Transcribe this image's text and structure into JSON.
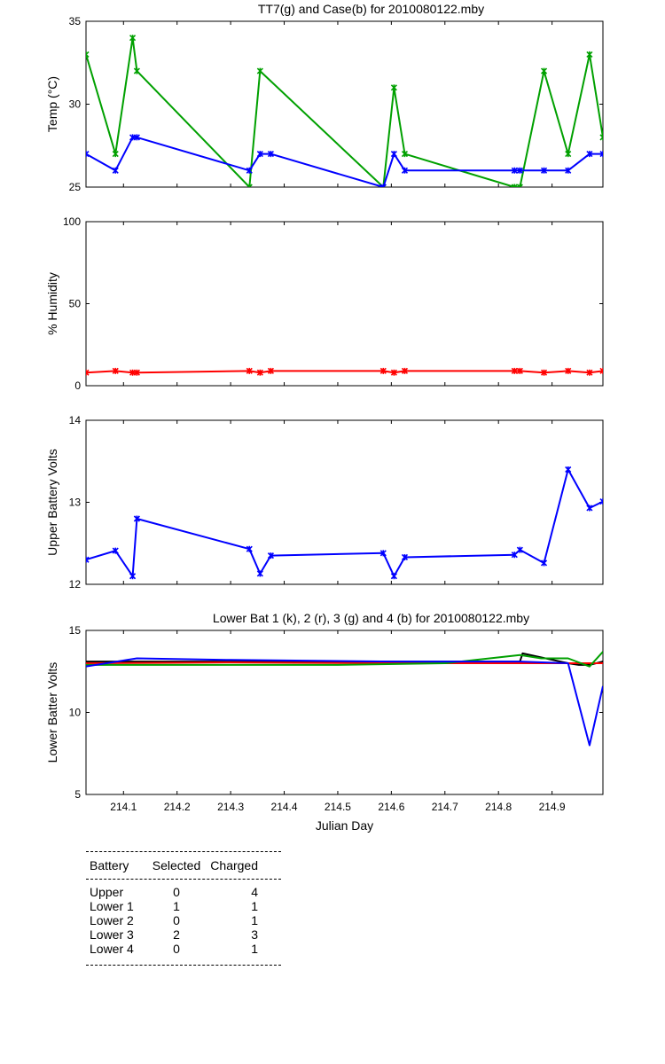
{
  "chart_data": [
    {
      "type": "line",
      "title": "TT7(g) and Case(b) for 2010080122.mby",
      "xlabel": "",
      "ylabel": "Temp  (°C)",
      "xlim": [
        214.03,
        214.995
      ],
      "ylim": [
        25,
        35
      ],
      "yticks": [
        25,
        30,
        35
      ],
      "grid": false,
      "series": [
        {
          "color": "#00a000",
          "points": [
            [
              214.03,
              33
            ],
            [
              214.085,
              27
            ],
            [
              214.117,
              34
            ],
            [
              214.125,
              32
            ],
            [
              214.335,
              25
            ],
            [
              214.355,
              32
            ],
            [
              214.585,
              25
            ],
            [
              214.605,
              31
            ],
            [
              214.625,
              27
            ],
            [
              214.83,
              25
            ],
            [
              214.84,
              25
            ],
            [
              214.885,
              32
            ],
            [
              214.93,
              27
            ],
            [
              214.97,
              33
            ],
            [
              214.995,
              28
            ]
          ]
        },
        {
          "color": "#0000ff",
          "points": [
            [
              214.03,
              27
            ],
            [
              214.085,
              26
            ],
            [
              214.117,
              28
            ],
            [
              214.125,
              28
            ],
            [
              214.335,
              26
            ],
            [
              214.355,
              27
            ],
            [
              214.375,
              27
            ],
            [
              214.585,
              25
            ],
            [
              214.605,
              27
            ],
            [
              214.625,
              26
            ],
            [
              214.83,
              26
            ],
            [
              214.84,
              26
            ],
            [
              214.885,
              26
            ],
            [
              214.93,
              26
            ],
            [
              214.97,
              27
            ],
            [
              214.995,
              27
            ]
          ]
        }
      ]
    },
    {
      "type": "line",
      "title": "",
      "xlabel": "",
      "ylabel": "% Humidity",
      "xlim": [
        214.03,
        214.995
      ],
      "ylim": [
        0,
        100
      ],
      "yticks": [
        0,
        50,
        100
      ],
      "grid": false,
      "series": [
        {
          "color": "#ff0000",
          "points": [
            [
              214.03,
              8
            ],
            [
              214.085,
              9
            ],
            [
              214.117,
              8
            ],
            [
              214.125,
              8
            ],
            [
              214.335,
              9
            ],
            [
              214.355,
              8
            ],
            [
              214.375,
              9
            ],
            [
              214.585,
              9
            ],
            [
              214.605,
              8
            ],
            [
              214.625,
              9
            ],
            [
              214.83,
              9
            ],
            [
              214.84,
              9
            ],
            [
              214.885,
              8
            ],
            [
              214.93,
              9
            ],
            [
              214.97,
              8
            ],
            [
              214.995,
              9
            ]
          ]
        }
      ]
    },
    {
      "type": "line",
      "title": "",
      "xlabel": "",
      "ylabel": "Upper Battery Volts",
      "xlim": [
        214.03,
        214.995
      ],
      "ylim": [
        12,
        14
      ],
      "yticks": [
        12,
        13,
        14
      ],
      "grid": false,
      "series": [
        {
          "color": "#0000ff",
          "points": [
            [
              214.03,
              12.3
            ],
            [
              214.085,
              12.41
            ],
            [
              214.117,
              12.1
            ],
            [
              214.125,
              12.8
            ],
            [
              214.335,
              12.43
            ],
            [
              214.355,
              12.13
            ],
            [
              214.375,
              12.35
            ],
            [
              214.585,
              12.38
            ],
            [
              214.605,
              12.1
            ],
            [
              214.625,
              12.33
            ],
            [
              214.83,
              12.36
            ],
            [
              214.84,
              12.42
            ],
            [
              214.885,
              12.26
            ],
            [
              214.93,
              13.4
            ],
            [
              214.97,
              12.93
            ],
            [
              214.995,
              13.01
            ]
          ]
        }
      ]
    },
    {
      "type": "line",
      "title": "Lower Bat 1 (k), 2 (r), 3 (g) and 4 (b) for 2010080122.mby",
      "xlabel": "Julian Day",
      "ylabel": "Lower Batter Volts",
      "xlim": [
        214.03,
        214.995
      ],
      "ylim": [
        5,
        15
      ],
      "yticks": [
        5,
        10,
        15
      ],
      "xticks": [
        214.1,
        214.2,
        214.3,
        214.4,
        214.5,
        214.6,
        214.7,
        214.8,
        214.9
      ],
      "grid": false,
      "series": [
        {
          "color": "#000000",
          "points": [
            [
              214.03,
              13.1
            ],
            [
              214.3,
              13.1
            ],
            [
              214.6,
              13.1
            ],
            [
              214.84,
              13.1
            ],
            [
              214.845,
              13.6
            ],
            [
              214.93,
              13.0
            ],
            [
              214.95,
              12.9
            ],
            [
              214.97,
              12.9
            ],
            [
              214.995,
              13.1
            ]
          ]
        },
        {
          "color": "#ff0000",
          "points": [
            [
              214.03,
              13.0
            ],
            [
              214.3,
              13.05
            ],
            [
              214.6,
              13.0
            ],
            [
              214.84,
              13.0
            ],
            [
              214.93,
              13.0
            ],
            [
              214.97,
              13.0
            ],
            [
              214.995,
              13.0
            ]
          ]
        },
        {
          "color": "#00a000",
          "points": [
            [
              214.03,
              12.9
            ],
            [
              214.2,
              12.9
            ],
            [
              214.5,
              12.9
            ],
            [
              214.7,
              13.0
            ],
            [
              214.84,
              13.5
            ],
            [
              214.88,
              13.3
            ],
            [
              214.93,
              13.3
            ],
            [
              214.97,
              12.8
            ],
            [
              214.995,
              13.7
            ]
          ]
        },
        {
          "color": "#0000ff",
          "points": [
            [
              214.03,
              12.8
            ],
            [
              214.125,
              13.3
            ],
            [
              214.3,
              13.2
            ],
            [
              214.6,
              13.1
            ],
            [
              214.84,
              13.1
            ],
            [
              214.93,
              13.0
            ],
            [
              214.97,
              8.0
            ],
            [
              214.995,
              11.6
            ]
          ]
        }
      ]
    }
  ],
  "battery_table": {
    "headers": [
      "Battery",
      "Selected",
      "Charged"
    ],
    "rows": [
      [
        "Upper",
        "0",
        "4"
      ],
      [
        "Lower 1",
        "1",
        "1"
      ],
      [
        "Lower 2",
        "0",
        "1"
      ],
      [
        "Lower 3",
        "2",
        "3"
      ],
      [
        "Lower 4",
        "0",
        "1"
      ]
    ]
  }
}
